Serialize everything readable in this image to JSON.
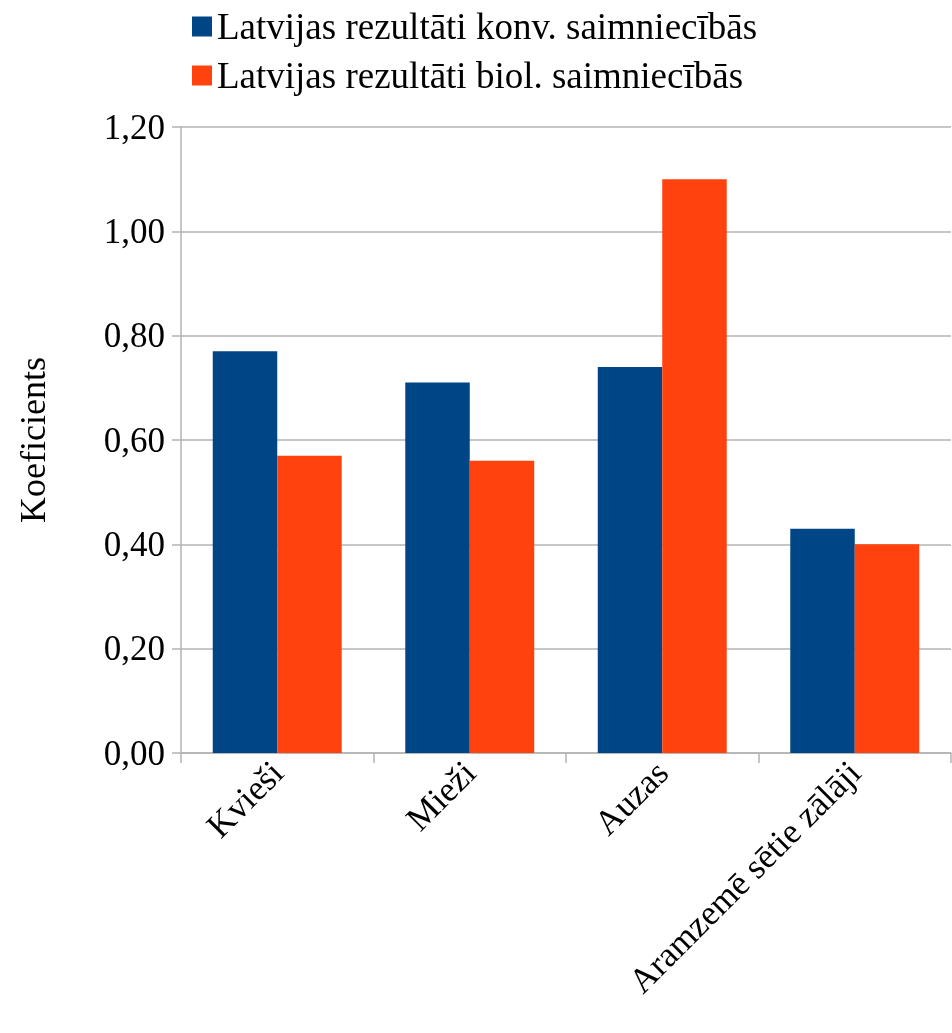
{
  "chart_data": {
    "type": "bar",
    "ylabel": "Koeficients",
    "categories": [
      "Kvieši",
      "Mieži",
      "Auzas",
      "Aramzemē sētie zālāji"
    ],
    "series": [
      {
        "name": "Latvijas rezultāti konv. saimniecībās",
        "color": "#004586",
        "values": [
          0.77,
          0.71,
          0.74,
          0.43
        ]
      },
      {
        "name": "Latvijas rezultāti biol. saimniecībās",
        "color": "#ff420e",
        "values": [
          0.57,
          0.56,
          1.1,
          0.4
        ]
      }
    ],
    "ylim": [
      0,
      1.2
    ],
    "yticks": [
      {
        "value": 0,
        "label": "0,00"
      },
      {
        "value": 0.2,
        "label": "0,20"
      },
      {
        "value": 0.4,
        "label": "0,40"
      },
      {
        "value": 0.6,
        "label": "0,60"
      },
      {
        "value": 0.8,
        "label": "0,80"
      },
      {
        "value": 1.0,
        "label": "1,00"
      },
      {
        "value": 1.2,
        "label": "1,20"
      }
    ],
    "grid": "y",
    "legend": "top left"
  }
}
